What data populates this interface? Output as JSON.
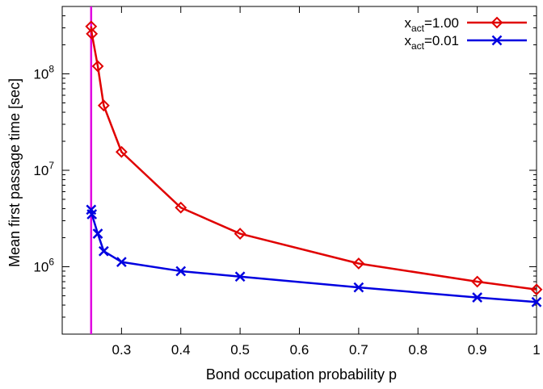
{
  "chart_data": {
    "type": "line",
    "xlabel": "Bond occupation probability p",
    "ylabel": "Mean first passage time [sec]",
    "xlim": [
      0.2,
      1.0
    ],
    "ylim": [
      200000,
      500000000
    ],
    "y_scale": "log",
    "x_ticks": [
      {
        "value": 0.3,
        "label": "0.3"
      },
      {
        "value": 0.4,
        "label": "0.4"
      },
      {
        "value": 0.5,
        "label": "0.5"
      },
      {
        "value": 0.6,
        "label": "0.6"
      },
      {
        "value": 0.7,
        "label": "0.7"
      },
      {
        "value": 0.8,
        "label": "0.8"
      },
      {
        "value": 0.9,
        "label": "0.9"
      },
      {
        "value": 1.0,
        "label": "1"
      }
    ],
    "y_ticks": [
      {
        "value": 1000000,
        "base": "10",
        "exp": "6"
      },
      {
        "value": 10000000,
        "base": "10",
        "exp": "7"
      },
      {
        "value": 100000000,
        "base": "10",
        "exp": "8"
      }
    ],
    "vertical_line": {
      "x": 0.2488,
      "color": "#e000e0"
    },
    "legend_position": "top-right",
    "series": [
      {
        "name_main": "x",
        "name_sub": "act",
        "name_rest": "=1.00",
        "color": "#e00000",
        "marker": "diamond",
        "x": [
          0.2488,
          0.25,
          0.26,
          0.27,
          0.3,
          0.4,
          0.5,
          0.7,
          0.9,
          1.0
        ],
        "y": [
          310000000,
          260000000,
          120000000,
          47000000,
          15500000,
          4100000,
          2200000,
          1080000,
          700000,
          580000
        ]
      },
      {
        "name_main": "x",
        "name_sub": "act",
        "name_rest": "=0.01",
        "color": "#0000e0",
        "marker": "cross",
        "x": [
          0.2488,
          0.25,
          0.26,
          0.27,
          0.3,
          0.4,
          0.5,
          0.7,
          0.9,
          1.0
        ],
        "y": [
          3900000,
          3500000,
          2200000,
          1450000,
          1120000,
          900000,
          790000,
          610000,
          480000,
          430000
        ]
      }
    ]
  }
}
